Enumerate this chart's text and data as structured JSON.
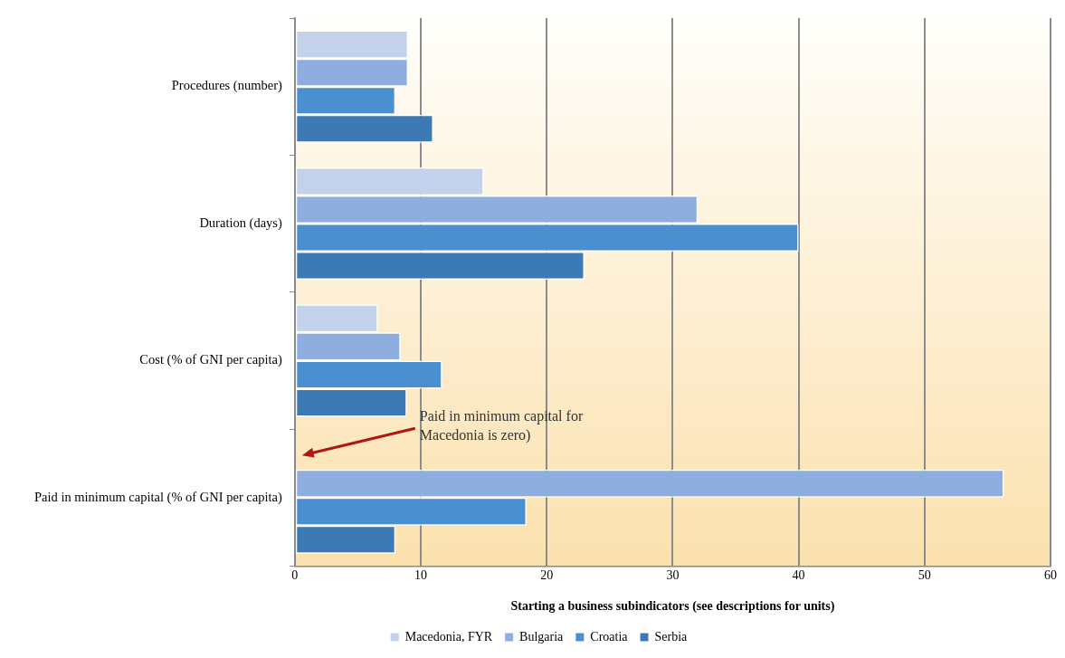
{
  "chart_data": {
    "type": "bar",
    "orientation": "horizontal",
    "xlabel": "Starting a business subindicators (see descriptions for units)",
    "categories": [
      "Procedures (number)",
      "Duration (days)",
      "Cost (% of GNI per capita)",
      "Paid in minimum capital (% of GNI per capita)"
    ],
    "series": [
      {
        "name": "Macedonia, FYR",
        "color": "#c3d1ea",
        "values": [
          9,
          15,
          6.6,
          0
        ]
      },
      {
        "name": "Bulgaria",
        "color": "#8eaee0",
        "values": [
          9,
          32,
          8.4,
          56.3
        ]
      },
      {
        "name": "Croatia",
        "color": "#4a8fd0",
        "values": [
          8,
          40,
          11.7,
          18.4
        ]
      },
      {
        "name": "Serbia",
        "color": "#3d7ab5",
        "values": [
          11,
          23,
          8.9,
          8
        ]
      }
    ],
    "xlim": [
      0,
      60
    ],
    "xticks": [
      0,
      10,
      20,
      30,
      40,
      50,
      60
    ],
    "grid": "x",
    "legend": "bottom",
    "annotations": [
      "Paid in minimum capital for\nMacedonia is zero)"
    ]
  }
}
